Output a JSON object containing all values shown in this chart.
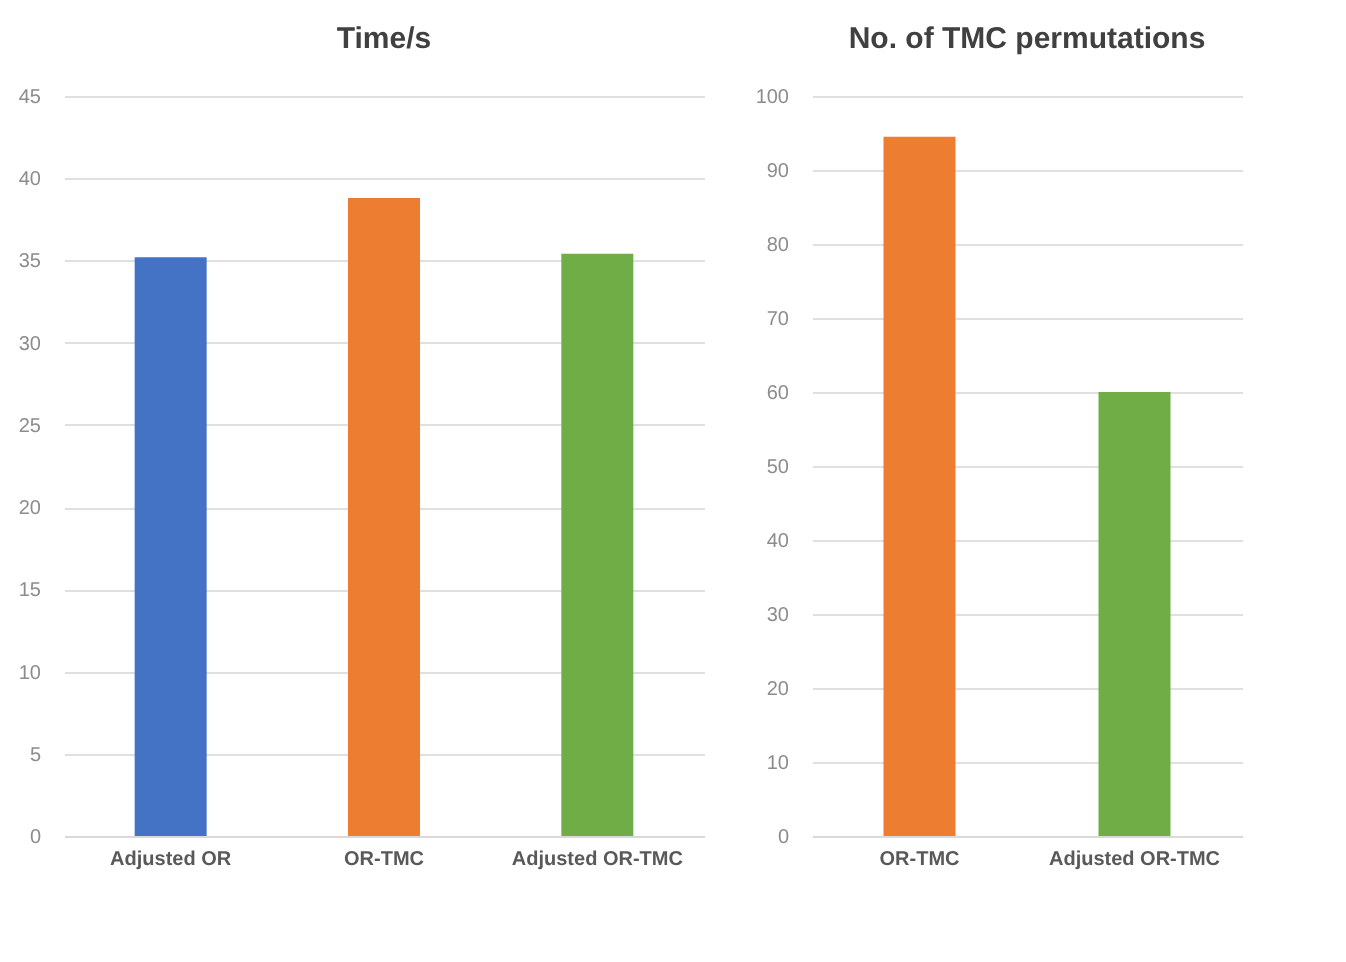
{
  "chart_data": [
    {
      "type": "bar",
      "title": "Time/s",
      "categories": [
        "Adjusted OR",
        "OR-TMC",
        "Adjusted OR-TMC"
      ],
      "values": [
        35.2,
        38.8,
        35.4
      ],
      "colors": [
        "#4472c4",
        "#ed7d31",
        "#70ad47"
      ],
      "ylim": [
        0,
        45
      ],
      "yticks": [
        0,
        5,
        10,
        15,
        20,
        25,
        30,
        35,
        40,
        45
      ],
      "grid": "y",
      "legend": false
    },
    {
      "type": "bar",
      "title": "No. of TMC permutations",
      "categories": [
        "OR-TMC",
        "Adjusted OR-TMC"
      ],
      "values": [
        94.5,
        60
      ],
      "colors": [
        "#ed7d31",
        "#70ad47"
      ],
      "ylim": [
        0,
        100
      ],
      "yticks": [
        0,
        10,
        20,
        30,
        40,
        50,
        60,
        70,
        80,
        90,
        100
      ],
      "grid": "y",
      "legend": false
    }
  ]
}
